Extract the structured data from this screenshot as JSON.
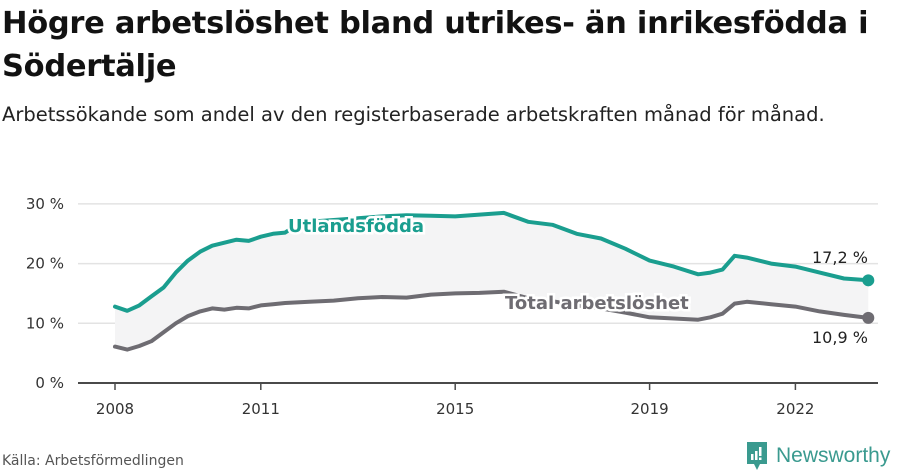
{
  "header": {
    "title": "Högre arbetslöshet bland utrikes- än inrikesfödda i Södertälje",
    "subtitle": "Arbetssökande som andel av den registerbaserade arbetskraften månad för månad."
  },
  "footer": {
    "source": "Källa: Arbetsförmedlingen",
    "brand": "Newsworthy",
    "brand_icon": "bar-chart-speech-bubble-icon"
  },
  "colors": {
    "foreign_born": "#1a9e8f",
    "total": "#6e6c72",
    "band": "#f4f4f5",
    "grid": "#e3e3e3",
    "axis": "#4a4a4a",
    "brand": "#3a9a8f"
  },
  "chart_data": {
    "type": "line",
    "title": "Högre arbetslöshet bland utrikes- än inrikesfödda i Södertälje",
    "subtitle": "Arbetssökande som andel av den registerbaserade arbetskraften månad för månad.",
    "xlabel": "",
    "ylabel": "",
    "ylim": [
      0,
      30
    ],
    "xlim": [
      2007.0,
      2024.5
    ],
    "y_ticks": [
      0,
      10,
      20,
      30
    ],
    "y_tick_labels": [
      "0 %",
      "10 %",
      "20 %",
      "30 %"
    ],
    "x_ticks": [
      2008,
      2011,
      2015,
      2019,
      2022
    ],
    "x_tick_labels": [
      "2008",
      "2011",
      "2015",
      "2019",
      "2022"
    ],
    "grid": "horizontal",
    "legend": "inline labels",
    "x": [
      2008.0,
      2008.25,
      2008.5,
      2008.75,
      2009.0,
      2009.25,
      2009.5,
      2009.75,
      2010.0,
      2010.25,
      2010.5,
      2010.75,
      2011.0,
      2011.25,
      2011.5,
      2011.75,
      2012.0,
      2012.5,
      2013.0,
      2013.5,
      2014.0,
      2014.5,
      2015.0,
      2015.5,
      2016.0,
      2016.5,
      2017.0,
      2017.5,
      2018.0,
      2018.5,
      2019.0,
      2019.5,
      2020.0,
      2020.25,
      2020.5,
      2020.75,
      2021.0,
      2021.5,
      2022.0,
      2022.5,
      2023.0,
      2023.5
    ],
    "series": [
      {
        "name": "Utlandsfödda",
        "color": "#1a9e8f",
        "end_label": "17,2 %",
        "values": [
          12.8,
          12.1,
          13.0,
          14.5,
          16.0,
          18.5,
          20.5,
          22.0,
          23.0,
          23.5,
          24.0,
          23.8,
          24.5,
          25.0,
          25.2,
          26.5,
          27.0,
          27.3,
          27.6,
          27.9,
          28.1,
          28.0,
          27.9,
          28.2,
          28.5,
          27.0,
          26.5,
          25.0,
          24.2,
          22.5,
          20.5,
          19.5,
          18.2,
          18.5,
          19.0,
          21.3,
          21.0,
          20.0,
          19.5,
          18.5,
          17.5,
          17.2
        ]
      },
      {
        "name": "Total arbetslöshet",
        "color": "#6e6c72",
        "end_label": "10,9 %",
        "values": [
          6.1,
          5.6,
          6.2,
          7.0,
          8.5,
          10.0,
          11.2,
          12.0,
          12.5,
          12.3,
          12.6,
          12.5,
          13.0,
          13.2,
          13.4,
          13.5,
          13.6,
          13.8,
          14.2,
          14.4,
          14.3,
          14.8,
          15.0,
          15.1,
          15.3,
          14.2,
          13.7,
          13.0,
          12.5,
          11.8,
          11.0,
          10.8,
          10.6,
          11.0,
          11.6,
          13.3,
          13.6,
          13.2,
          12.8,
          12.0,
          11.4,
          10.9
        ]
      }
    ]
  }
}
